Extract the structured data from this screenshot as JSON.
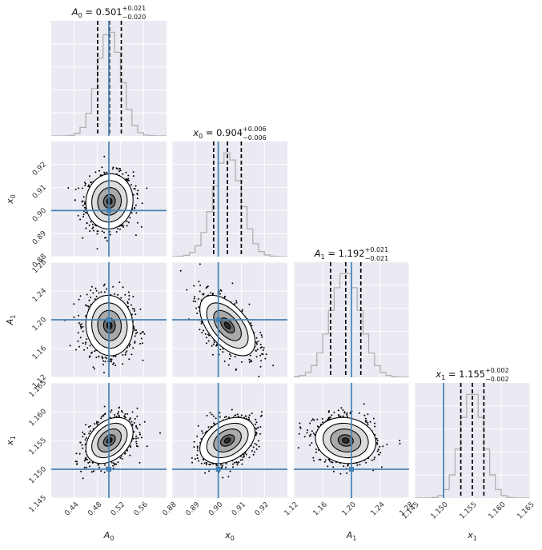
{
  "chart_data": {
    "type": "corner",
    "parameters": [
      {
        "key": "A0",
        "base": "A",
        "sub": "0",
        "range": [
          0.4,
          0.6
        ],
        "ticks": [
          "0.44",
          "0.48",
          "0.52",
          "0.56"
        ],
        "tick_values": [
          0.44,
          0.48,
          0.52,
          0.56
        ],
        "median": "0.501",
        "plus": "+0.021",
        "minus": "−0.020",
        "truth": 0.5,
        "title_eq": " = 0.501",
        "mu": 0.501,
        "sigma": 0.0205
      },
      {
        "key": "x0",
        "base": "x",
        "sub": "0",
        "range": [
          0.88,
          0.93
        ],
        "ticks": [
          "0.88",
          "0.89",
          "0.90",
          "0.91",
          "0.92"
        ],
        "tick_values": [
          0.88,
          0.89,
          0.9,
          0.91,
          0.92
        ],
        "median": "0.904",
        "plus": "+0.006",
        "minus": "−0.006",
        "truth": 0.9,
        "title_eq": " = 0.904",
        "mu": 0.904,
        "sigma": 0.006
      },
      {
        "key": "A1",
        "base": "A",
        "sub": "1",
        "range": [
          1.12,
          1.28
        ],
        "ticks": [
          "1.12",
          "1.16",
          "1.20",
          "1.24",
          "1.28"
        ],
        "tick_values": [
          1.12,
          1.16,
          1.2,
          1.24,
          1.28
        ],
        "median": "1.192",
        "plus": "+0.021",
        "minus": "−0.021",
        "truth": 1.2,
        "title_eq": " = 1.192",
        "mu": 1.192,
        "sigma": 0.021
      },
      {
        "key": "x1",
        "base": "x",
        "sub": "1",
        "range": [
          1.145,
          1.165
        ],
        "ticks": [
          "1.145",
          "1.150",
          "1.155",
          "1.160",
          "1.165"
        ],
        "tick_values": [
          1.145,
          1.15,
          1.155,
          1.16,
          1.165
        ],
        "median": "1.155",
        "plus": "+0.002",
        "minus": "−0.002",
        "truth": 1.15,
        "title_eq": " = 1.155",
        "mu": 1.155,
        "sigma": 0.002
      }
    ],
    "correlations": {
      "x0|A0": 0.05,
      "A1|A0": -0.05,
      "A1|x0": -0.55,
      "x1|A0": 0.35,
      "x1|x0": 0.35,
      "x1|A1": -0.1
    },
    "colors": {
      "truth": "#4682b4",
      "panel_bg": "#eaeaf2",
      "grid": "#ffffff",
      "hist": "#b0b0b0",
      "quantile": "#000000"
    },
    "grid": true
  }
}
